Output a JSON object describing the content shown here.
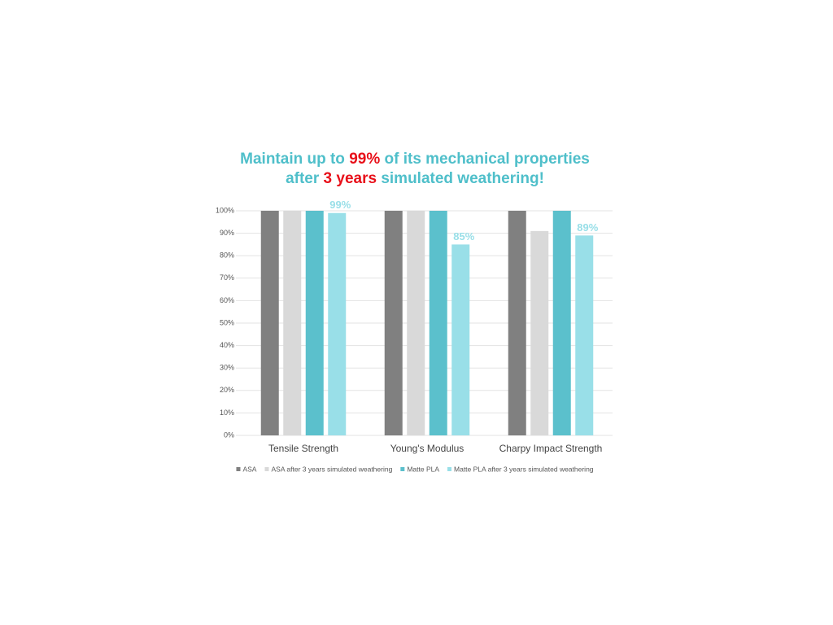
{
  "chart_data": {
    "type": "bar",
    "title_lines": [
      [
        {
          "text": "Maintain up to ",
          "color": "#4fbfca"
        },
        {
          "text": "99%",
          "color": "#e8101a"
        },
        {
          "text": " of its mechanical properties",
          "color": "#4fbfca"
        }
      ],
      [
        {
          "text": "after ",
          "color": "#4fbfca"
        },
        {
          "text": "3 years",
          "color": "#e8101a"
        },
        {
          "text": " simulated weathering!",
          "color": "#4fbfca"
        }
      ]
    ],
    "categories": [
      "Tensile Strength",
      "Young's Modulus",
      "Charpy Impact Strength"
    ],
    "series": [
      {
        "name": "ASA",
        "color": "#808080",
        "values": [
          100,
          100,
          100
        ]
      },
      {
        "name": "ASA after 3 years simulated weathering",
        "color": "#d9d9d9",
        "values": [
          100,
          100,
          91
        ]
      },
      {
        "name": "Matte PLA",
        "color": "#5bc0cc",
        "values": [
          100,
          100,
          100
        ]
      },
      {
        "name": "Matte PLA after 3 years simulated weathering",
        "color": "#99dfe8",
        "values": [
          99,
          85,
          89
        ],
        "value_labels": [
          "99%",
          "85%",
          "89%"
        ]
      }
    ],
    "ylim": [
      0,
      100
    ],
    "yticks": [
      {
        "value": 0,
        "label": "0%"
      },
      {
        "value": 10,
        "label": "10%"
      },
      {
        "value": 20,
        "label": "20%"
      },
      {
        "value": 30,
        "label": "30%"
      },
      {
        "value": 40,
        "label": "40%"
      },
      {
        "value": 50,
        "label": "50%"
      },
      {
        "value": 60,
        "label": "60%"
      },
      {
        "value": 70,
        "label": "70%"
      },
      {
        "value": 80,
        "label": "80%"
      },
      {
        "value": 90,
        "label": "90%"
      },
      {
        "value": 100,
        "label": "100%"
      }
    ],
    "grid": true,
    "legend": "bottom"
  }
}
